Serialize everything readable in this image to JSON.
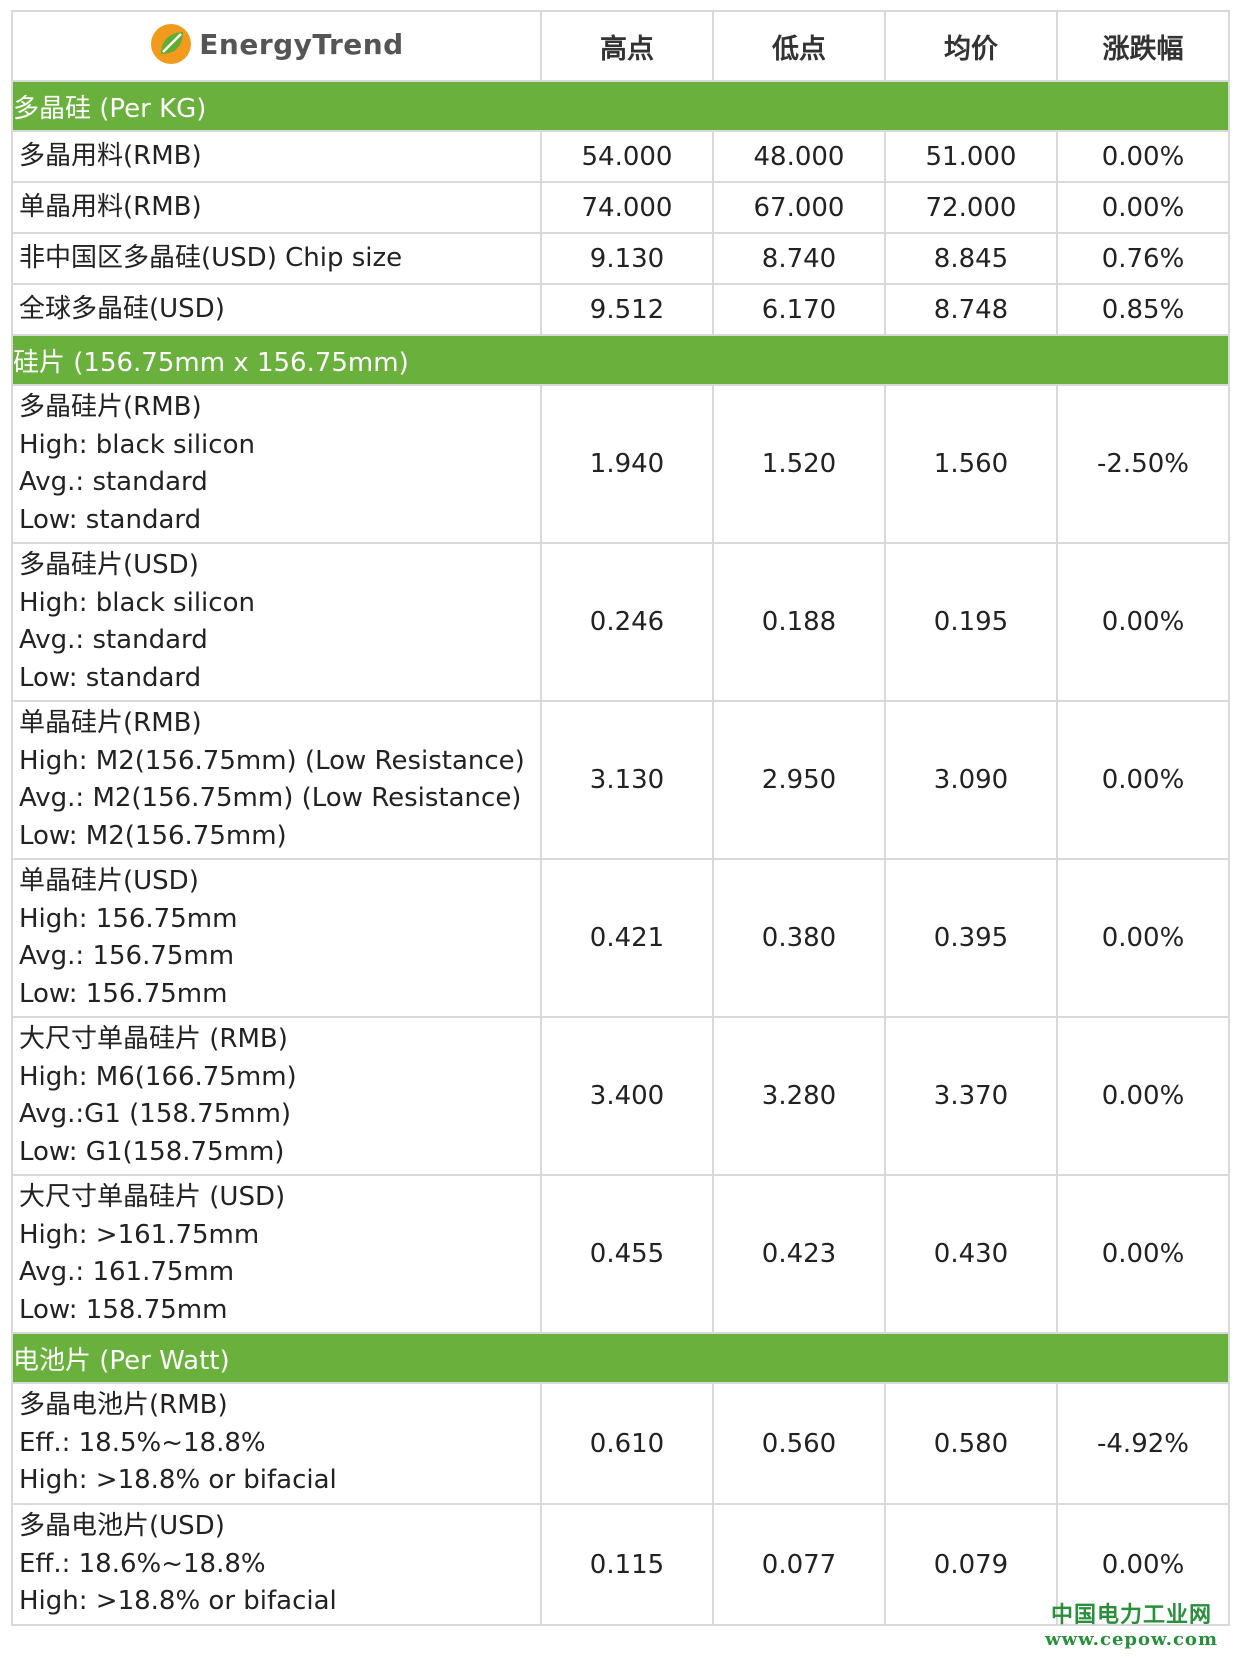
{
  "header": {
    "logo_text": "EnergyTrend",
    "columns": [
      "高点",
      "低点",
      "均价",
      "涨跌幅"
    ]
  },
  "colors": {
    "section_bg": "#6ab03d",
    "logo_orange": "#f29a1d",
    "logo_green": "#5fae32",
    "watermark": "#2a8f3a"
  },
  "sections": [
    {
      "title": "多晶硅 (Per KG)",
      "rows": [
        {
          "lines": [
            "多晶用料(RMB)"
          ],
          "values": [
            "54.000",
            "48.000",
            "51.000",
            "0.00%"
          ]
        },
        {
          "lines": [
            "单晶用料(RMB)"
          ],
          "values": [
            "74.000",
            "67.000",
            "72.000",
            "0.00%"
          ]
        },
        {
          "lines": [
            "非中国区多晶硅(USD) Chip size"
          ],
          "values": [
            "9.130",
            "8.740",
            "8.845",
            "0.76%"
          ]
        },
        {
          "lines": [
            "全球多晶硅(USD)"
          ],
          "values": [
            "9.512",
            "6.170",
            "8.748",
            "0.85%"
          ]
        }
      ]
    },
    {
      "title": "硅片 (156.75mm x 156.75mm)",
      "rows": [
        {
          "lines": [
            "多晶硅片(RMB)",
            "High: black silicon",
            "Avg.: standard",
            "Low: standard"
          ],
          "values": [
            "1.940",
            "1.520",
            "1.560",
            "-2.50%"
          ]
        },
        {
          "lines": [
            "多晶硅片(USD)",
            "High: black silicon",
            "Avg.: standard",
            "Low: standard"
          ],
          "values": [
            "0.246",
            "0.188",
            "0.195",
            "0.00%"
          ]
        },
        {
          "lines": [
            "单晶硅片(RMB)",
            "High: M2(156.75mm) (Low Resistance)",
            "Avg.: M2(156.75mm) (Low Resistance)",
            "Low: M2(156.75mm)"
          ],
          "values": [
            "3.130",
            "2.950",
            "3.090",
            "0.00%"
          ]
        },
        {
          "lines": [
            "单晶硅片(USD)",
            "High: 156.75mm",
            "Avg.: 156.75mm",
            "Low: 156.75mm"
          ],
          "values": [
            "0.421",
            "0.380",
            "0.395",
            "0.00%"
          ]
        },
        {
          "lines": [
            "大尺寸单晶硅片 (RMB)",
            "High: M6(166.75mm)",
            "Avg.:G1 (158.75mm)",
            "Low: G1(158.75mm)"
          ],
          "values": [
            "3.400",
            "3.280",
            "3.370",
            "0.00%"
          ]
        },
        {
          "lines": [
            "大尺寸单晶硅片 (USD)",
            "High: >161.75mm",
            "Avg.: 161.75mm",
            "Low: 158.75mm"
          ],
          "values": [
            "0.455",
            "0.423",
            "0.430",
            "0.00%"
          ]
        }
      ]
    },
    {
      "title": "电池片 (Per Watt)",
      "rows": [
        {
          "lines": [
            "多晶电池片(RMB)",
            "Eff.: 18.5%~18.8%",
            "High: >18.8% or bifacial"
          ],
          "values": [
            "0.610",
            "0.560",
            "0.580",
            "-4.92%"
          ]
        },
        {
          "lines": [
            "多晶电池片(USD)",
            "Eff.: 18.6%~18.8%",
            "High: >18.8% or bifacial"
          ],
          "values": [
            "0.115",
            "0.077",
            "0.079",
            "0.00%"
          ]
        }
      ]
    }
  ],
  "watermark": {
    "cn": "中国电力工业网",
    "url": "www.cepow.com"
  }
}
